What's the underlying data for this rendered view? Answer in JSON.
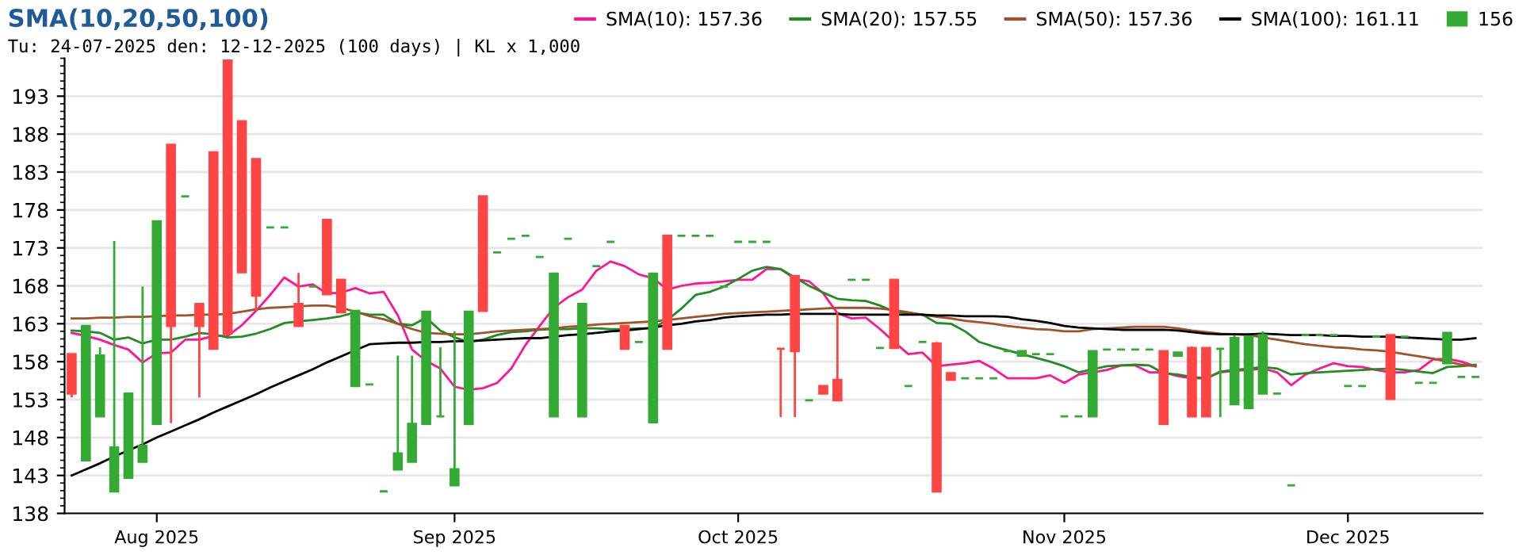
{
  "chart_data": {
    "type": "candlestick",
    "title": "SMA(10,20,50,100)",
    "subtitle": "Tu: 24-07-2025 den: 12-12-2025 (100 days) | KL x 1,000",
    "categories": [
      null,
      null,
      null,
      null,
      null,
      null,
      "Aug 2025",
      null,
      null,
      null,
      null,
      null,
      null,
      null,
      null,
      null,
      null,
      null,
      null,
      null,
      null,
      null,
      null,
      null,
      null,
      null,
      null,
      "Sep 2025",
      null,
      null,
      null,
      null,
      null,
      null,
      null,
      null,
      null,
      null,
      null,
      null,
      null,
      null,
      null,
      null,
      null,
      null,
      null,
      "Oct 2025",
      null,
      null,
      null,
      null,
      null,
      null,
      null,
      null,
      null,
      null,
      null,
      null,
      null,
      null,
      null,
      null,
      null,
      null,
      null,
      null,
      null,
      null,
      "Nov 2025",
      null,
      null,
      null,
      null,
      null,
      null,
      null,
      null,
      null,
      null,
      null,
      null,
      null,
      null,
      null,
      null,
      null,
      null,
      null,
      "Dec 2025",
      null,
      null,
      null,
      null,
      null,
      null,
      null,
      null,
      null
    ],
    "ylim": [
      138,
      198
    ],
    "yticks": [
      138,
      143,
      148,
      153,
      158,
      163,
      168,
      173,
      178,
      183,
      188,
      193
    ],
    "grid": "y",
    "legend": "top right",
    "series": [
      {
        "name": "156",
        "color": "#33aa33",
        "colors": [
          "#ff4444",
          "#33aa33",
          "#33aa33",
          "#33aa33",
          "#33aa33",
          "#33aa33",
          "#33aa33",
          "#ff4444",
          "#33aa33",
          "#ff4444",
          "#ff4444",
          "#ff4444",
          "#ff4444",
          "#ff4444",
          "#33aa33",
          "#33aa33",
          "#ff4444",
          "#33aa33",
          "#ff4444",
          "#ff4444",
          "#33aa33",
          "#33aa33",
          "#33aa33",
          "#33aa33",
          "#33aa33",
          "#33aa33",
          "#33aa33",
          "#33aa33",
          "#33aa33",
          "#ff4444",
          "#33aa33",
          "#33aa33",
          "#33aa33",
          "#33aa33",
          "#33aa33",
          "#33aa33",
          "#33aa33",
          "#33aa33",
          "#33aa33",
          "#ff4444",
          "#33aa33",
          "#33aa33",
          "#ff4444",
          "#33aa33",
          "#33aa33",
          "#33aa33",
          "#33aa33",
          "#33aa33",
          "#33aa33",
          "#33aa33",
          "#ff4444",
          "#ff4444",
          "#33aa33",
          "#ff4444",
          "#ff4444",
          "#33aa33",
          "#33aa33",
          "#33aa33",
          "#ff4444",
          "#33aa33",
          "#33aa33",
          "#ff4444",
          "#ff4444",
          "#33aa33",
          "#33aa33",
          "#33aa33",
          "#33aa33",
          "#33aa33",
          "#33aa33",
          "#33aa33",
          "#33aa33",
          "#33aa33",
          "#33aa33",
          "#33aa33",
          "#33aa33",
          "#33aa33",
          "#33aa33",
          "#ff4444",
          "#33aa33",
          "#ff4444",
          "#ff4444",
          "#33aa33",
          "#33aa33",
          "#33aa33",
          "#33aa33",
          "#33aa33",
          "#33aa33",
          "#33aa33",
          "#33aa33",
          "#33aa33",
          "#33aa33",
          "#33aa33",
          "#33aa33",
          "#ff4444",
          "#33aa33",
          "#33aa33",
          "#33aa33",
          "#33aa33",
          "#33aa33",
          "#33aa33"
        ],
        "ohlc": [
          [
            159,
            159,
            153.3,
            153.8
          ],
          [
            145,
            162.7,
            145,
            162.7
          ],
          [
            150.8,
            159.9,
            150.8,
            158.8
          ],
          [
            140.9,
            173.9,
            140.9,
            146.7
          ],
          [
            142.7,
            153.8,
            142.7,
            153.8
          ],
          [
            144.8,
            167.9,
            144.8,
            146.9
          ],
          [
            149.8,
            176.5,
            149.8,
            176.5
          ],
          [
            186.6,
            186.6,
            149.9,
            162.7
          ],
          [
            179.8,
            179.8,
            179.8,
            179.8
          ],
          [
            165.6,
            165.6,
            153.3,
            162.7
          ],
          [
            185.6,
            185.6,
            159.7,
            159.7
          ],
          [
            197.7,
            197.7,
            161.7,
            161.7
          ],
          [
            189.7,
            189.7,
            169.8,
            169.8
          ],
          [
            184.7,
            184.7,
            164.7,
            166.7
          ],
          [
            175.7,
            175.7,
            175.7,
            175.7
          ],
          [
            175.7,
            175.7,
            175.7,
            175.7
          ],
          [
            165.6,
            169.7,
            162.7,
            162.7
          ],
          [
            167.9,
            167.9,
            167.9,
            167.9
          ],
          [
            176.7,
            176.7,
            166.9,
            166.9
          ],
          [
            168.8,
            168.8,
            164.5,
            164.5
          ],
          [
            154.8,
            164.7,
            154.8,
            164.7
          ],
          [
            155,
            155,
            155,
            155
          ],
          [
            140.9,
            140.9,
            140.9,
            140.9
          ],
          [
            143.8,
            158.8,
            143.8,
            145.9
          ],
          [
            144.8,
            158.8,
            144.8,
            149.8
          ],
          [
            149.8,
            164.6,
            149.8,
            164.6
          ],
          [
            150.8,
            159.9,
            150.8,
            150.8
          ],
          [
            141.7,
            162,
            141.7,
            143.8
          ],
          [
            149.8,
            164.6,
            149.8,
            164.6
          ],
          [
            179.8,
            179.8,
            164.7,
            164.7
          ],
          [
            172.4,
            172.4,
            172.4,
            172.4
          ],
          [
            174.2,
            174.2,
            174.2,
            174.2
          ],
          [
            174.6,
            174.6,
            174.6,
            174.6
          ],
          [
            171.8,
            171.8,
            171.8,
            171.8
          ],
          [
            150.8,
            169.6,
            150.8,
            169.6
          ],
          [
            174.2,
            174.2,
            174.2,
            174.2
          ],
          [
            150.8,
            165.6,
            150.8,
            165.6
          ],
          [
            170.6,
            170.6,
            170.6,
            170.6
          ],
          [
            173.8,
            173.8,
            173.8,
            173.8
          ],
          [
            162.7,
            162.7,
            159.7,
            159.7
          ],
          [
            160.6,
            160.6,
            160.6,
            160.6
          ],
          [
            150,
            169.6,
            150,
            169.6
          ],
          [
            174.6,
            174.6,
            159.7,
            159.7
          ],
          [
            174.6,
            174.6,
            174.6,
            174.6
          ],
          [
            174.6,
            174.6,
            174.6,
            174.6
          ],
          [
            174.6,
            174.6,
            174.6,
            174.6
          ],
          [
            167.9,
            167.9,
            167.9,
            167.9
          ],
          [
            173.8,
            173.8,
            173.8,
            173.8
          ],
          [
            173.8,
            173.8,
            173.8,
            173.8
          ],
          [
            173.8,
            173.8,
            173.8,
            173.8
          ],
          [
            159.7,
            159.7,
            150.7,
            159.7
          ],
          [
            169.3,
            169.3,
            150.7,
            159.4
          ],
          [
            152.9,
            152.9,
            152.9,
            152.9
          ],
          [
            154.8,
            154.8,
            153.8,
            153.8
          ],
          [
            155.6,
            164.6,
            152.9,
            152.9
          ],
          [
            168.8,
            168.8,
            168.8,
            168.8
          ],
          [
            168.8,
            168.8,
            168.8,
            168.8
          ],
          [
            159.8,
            159.8,
            159.8,
            159.8
          ],
          [
            168.8,
            168.8,
            159.8,
            159.8
          ],
          [
            154.8,
            154.8,
            154.8,
            154.8
          ],
          [
            160.6,
            160.6,
            160.6,
            160.6
          ],
          [
            160.4,
            160.6,
            140.9,
            140.9
          ],
          [
            156.5,
            156.5,
            155.6,
            155.6
          ],
          [
            155.8,
            155.8,
            155.8,
            155.8
          ],
          [
            155.8,
            155.8,
            155.8,
            155.8
          ],
          [
            155.8,
            155.8,
            155.8,
            155.8
          ],
          [
            159.4,
            159.4,
            159.4,
            159.4
          ],
          [
            158.8,
            159.4,
            158.8,
            159.4
          ],
          [
            159,
            159,
            159,
            159
          ],
          [
            159,
            159,
            159,
            159
          ],
          [
            150.8,
            150.8,
            150.8,
            150.8
          ],
          [
            150.8,
            150.8,
            150.8,
            150.8
          ],
          [
            150.8,
            159.4,
            150.8,
            159.4
          ],
          [
            159.6,
            159.6,
            159.6,
            159.6
          ],
          [
            159.6,
            159.6,
            159.6,
            159.6
          ],
          [
            159.6,
            159.6,
            159.6,
            159.6
          ],
          [
            159.6,
            159.6,
            159.6,
            159.6
          ],
          [
            159.4,
            159.4,
            149.8,
            149.8
          ],
          [
            158.8,
            159.2,
            158.8,
            159.2
          ],
          [
            159.8,
            160,
            150.8,
            150.8
          ],
          [
            159.8,
            159.8,
            150.8,
            150.8
          ],
          [
            159.7,
            159.7,
            150.7,
            159.7
          ],
          [
            152.4,
            161.5,
            152.4,
            161.1
          ],
          [
            151.9,
            161.3,
            151.9,
            161.3
          ],
          [
            153.8,
            162,
            153.8,
            161.5
          ],
          [
            153.8,
            153.8,
            153.8,
            153.8
          ],
          [
            141.7,
            141.7,
            141.7,
            141.7
          ],
          [
            161.5,
            161.5,
            161.5,
            161.5
          ],
          [
            161.5,
            161.5,
            161.5,
            161.5
          ],
          [
            161.5,
            161.5,
            161.5,
            161.5
          ],
          [
            154.8,
            154.8,
            154.8,
            154.8
          ],
          [
            154.8,
            154.8,
            154.8,
            154.8
          ],
          [
            161.3,
            161.3,
            161.3,
            161.3
          ],
          [
            161.5,
            161.5,
            153.1,
            153.1
          ],
          [
            161.3,
            161.3,
            161.3,
            161.3
          ],
          [
            155.2,
            155.2,
            155.2,
            155.2
          ],
          [
            155.2,
            155.2,
            155.2,
            155.2
          ],
          [
            157.8,
            161.8,
            157.8,
            161.8
          ],
          [
            156,
            156,
            156,
            156
          ],
          [
            156,
            156,
            156,
            156
          ]
        ]
      },
      {
        "type": "line",
        "name": "SMA(10): 157.36",
        "color": "#ff1493",
        "values": [
          161.8,
          161.4,
          160.9,
          160.2,
          159.6,
          157.9,
          159.1,
          159.2,
          160.9,
          160.9,
          161.4,
          161.4,
          162.8,
          164.7,
          166.8,
          169.1,
          167.9,
          168.2,
          167.0,
          167.1,
          167.7,
          167.0,
          167.2,
          164.1,
          159.6,
          158.1,
          157.1,
          154.7,
          154.3,
          154.5,
          155.2,
          157.1,
          160.2,
          162.7,
          165.1,
          166.5,
          167.5,
          170.0,
          171.2,
          170.6,
          169.5,
          169.0,
          167.5,
          168.0,
          168.3,
          168.4,
          168.6,
          168.8,
          168.8,
          170.2,
          170.2,
          168.9,
          168.6,
          167.0,
          164.4,
          163.7,
          163.8,
          162.3,
          160.6,
          159.0,
          159.2,
          157.4,
          157.6,
          157.8,
          158.1,
          157.1,
          155.8,
          155.8,
          155.8,
          156.2,
          155.2,
          156.3,
          156.6,
          156.9,
          157.5,
          157.5,
          156.6,
          156.6,
          156.1,
          155.8,
          155.8,
          156.6,
          156.8,
          156.9,
          157.1,
          156.6,
          154.9,
          156.3,
          157.1,
          157.8,
          157.4,
          157.3,
          156.9,
          156.6,
          156.6,
          156.9,
          158.3,
          158.4,
          158.0,
          157.4
        ]
      },
      {
        "type": "line",
        "name": "SMA(20): 157.55",
        "color": "#228b22",
        "values": [
          162.1,
          162.0,
          161.8,
          160.9,
          161.2,
          160.4,
          160.9,
          160.9,
          161.3,
          161.8,
          161.6,
          161.2,
          161.3,
          161.7,
          162.3,
          163.1,
          163.3,
          163.5,
          163.7,
          164.0,
          164.5,
          164.2,
          164.2,
          163.0,
          162.8,
          163.8,
          162.1,
          161.2,
          160.6,
          160.9,
          161.5,
          161.9,
          162.0,
          162.2,
          162.3,
          162.3,
          162.4,
          162.4,
          162.3,
          162.3,
          162.4,
          162.4,
          163.5,
          165.0,
          166.8,
          167.2,
          167.9,
          168.9,
          170.0,
          170.5,
          170.2,
          169.1,
          168.0,
          167.1,
          166.3,
          166.1,
          166.0,
          165.4,
          164.6,
          164.4,
          164.2,
          163.1,
          163.0,
          162.0,
          160.6,
          160.0,
          159.5,
          159.0,
          158.5,
          158.0,
          157.4,
          156.6,
          157.0,
          157.4,
          157.5,
          157.6,
          157.5,
          156.5,
          156.3,
          156.0,
          155.8,
          156.7,
          156.9,
          157.1,
          157.3,
          157.1,
          156.3,
          156.5,
          156.6,
          156.7,
          156.8,
          156.9,
          157.0,
          157.1,
          156.9,
          156.7,
          156.5,
          157.3,
          157.4,
          157.6
        ]
      },
      {
        "type": "line",
        "name": "SMA(50): 157.36",
        "color": "#a0522d",
        "values": [
          163.7,
          163.7,
          163.8,
          163.8,
          163.9,
          163.9,
          164.0,
          164.1,
          164.1,
          164.2,
          164.2,
          164.3,
          164.6,
          164.9,
          165.1,
          165.2,
          165.3,
          165.4,
          165.4,
          165.1,
          164.6,
          164.0,
          163.6,
          163.0,
          162.3,
          161.8,
          161.7,
          161.6,
          161.6,
          161.8,
          162.0,
          162.1,
          162.2,
          162.3,
          162.4,
          162.6,
          162.7,
          162.9,
          163.0,
          163.1,
          163.2,
          163.3,
          163.5,
          163.7,
          163.9,
          164.1,
          164.3,
          164.4,
          164.5,
          164.6,
          164.7,
          164.8,
          164.9,
          165.0,
          165.1,
          165.1,
          165.1,
          165.0,
          164.8,
          164.5,
          164.2,
          163.9,
          163.7,
          163.4,
          163.2,
          163.0,
          162.7,
          162.5,
          162.3,
          162.2,
          162.0,
          162.0,
          162.3,
          162.4,
          162.5,
          162.6,
          162.6,
          162.6,
          162.4,
          162.1,
          161.9,
          161.7,
          161.6,
          161.5,
          161.2,
          160.9,
          160.6,
          160.3,
          160.1,
          159.9,
          159.8,
          159.6,
          159.5,
          159.3,
          159.0,
          158.7,
          158.4,
          158.0,
          157.6,
          157.4
        ]
      },
      {
        "type": "line",
        "name": "SMA(100): 161.11",
        "color": "#000000",
        "values": [
          143.0,
          143.8,
          144.6,
          145.5,
          146.3,
          147.1,
          148.0,
          148.8,
          149.6,
          150.4,
          151.3,
          152.1,
          152.9,
          153.7,
          154.6,
          155.4,
          156.2,
          157.0,
          157.9,
          158.7,
          159.5,
          160.3,
          160.4,
          160.5,
          160.5,
          160.6,
          160.6,
          160.7,
          160.7,
          160.8,
          160.9,
          161.0,
          161.1,
          161.1,
          161.3,
          161.5,
          161.6,
          161.8,
          162.0,
          162.1,
          162.3,
          162.5,
          162.8,
          163.0,
          163.3,
          163.5,
          163.8,
          164.0,
          164.1,
          164.2,
          164.2,
          164.3,
          164.3,
          164.3,
          164.3,
          164.2,
          164.2,
          164.2,
          164.2,
          164.2,
          164.2,
          164.1,
          164.1,
          164.0,
          164.0,
          164.0,
          163.9,
          163.6,
          163.4,
          163.1,
          162.7,
          162.5,
          162.4,
          162.3,
          162.2,
          162.2,
          162.2,
          162.2,
          162.1,
          161.9,
          161.7,
          161.6,
          161.6,
          161.6,
          161.7,
          161.6,
          161.5,
          161.5,
          161.5,
          161.4,
          161.4,
          161.3,
          161.3,
          161.3,
          161.2,
          161.1,
          161.0,
          160.9,
          160.9,
          161.1
        ]
      }
    ]
  }
}
